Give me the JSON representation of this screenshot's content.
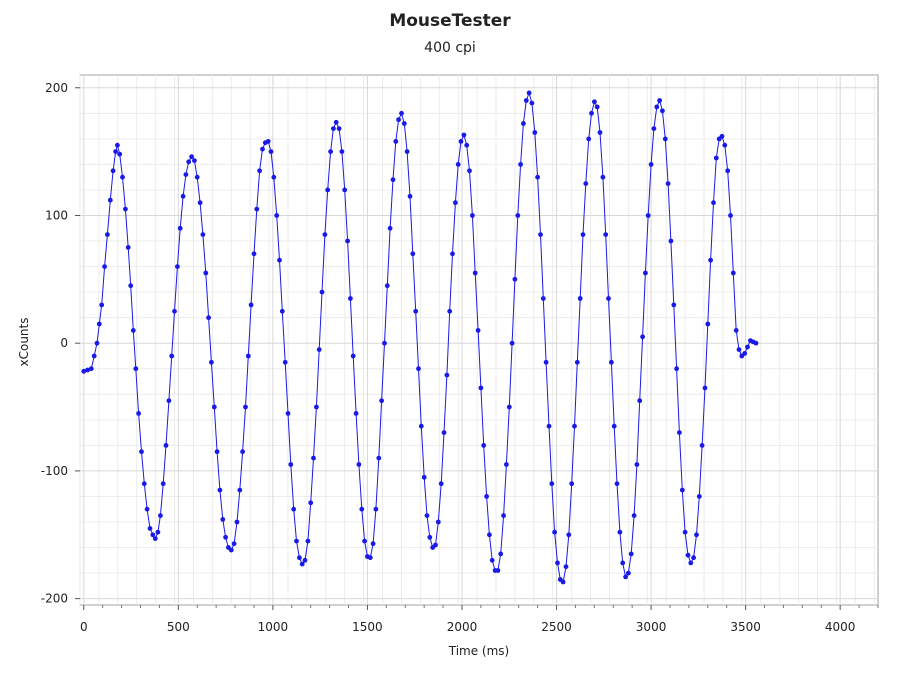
{
  "chart_data": {
    "type": "line",
    "title": "MouseTester",
    "subtitle": "400 cpi",
    "xlabel": "Time (ms)",
    "ylabel": "xCounts",
    "xlim": [
      -20,
      4200
    ],
    "ylim": [
      -205,
      210
    ],
    "x_ticks": [
      0,
      500,
      1000,
      1500,
      2000,
      2500,
      3000,
      3500,
      4000
    ],
    "x_tick_labels": [
      "0",
      "500",
      "1000",
      "1500",
      "2000",
      "2500",
      "3000",
      "3500",
      "4000"
    ],
    "y_ticks": [
      200,
      100,
      0,
      -100,
      -200
    ],
    "y_tick_labels": [
      "200",
      "100",
      "0",
      "-100",
      "-200"
    ],
    "grid": true,
    "legend": "none",
    "series_color": "#1a1ae6",
    "marker": "circle",
    "series": [
      {
        "points": [
          [
            0,
            -22
          ],
          [
            20,
            -21
          ],
          [
            40,
            -20
          ],
          [
            55,
            -10
          ],
          [
            70,
            0
          ],
          [
            82,
            15
          ],
          [
            95,
            30
          ],
          [
            110,
            60
          ],
          [
            125,
            85
          ],
          [
            140,
            112
          ],
          [
            155,
            135
          ],
          [
            168,
            150
          ],
          [
            178,
            155
          ],
          [
            190,
            148
          ],
          [
            205,
            130
          ],
          [
            220,
            105
          ],
          [
            235,
            75
          ],
          [
            248,
            45
          ],
          [
            262,
            10
          ],
          [
            275,
            -20
          ],
          [
            290,
            -55
          ],
          [
            305,
            -85
          ],
          [
            320,
            -110
          ],
          [
            335,
            -130
          ],
          [
            350,
            -145
          ],
          [
            365,
            -150
          ],
          [
            378,
            -153
          ],
          [
            392,
            -148
          ],
          [
            405,
            -135
          ],
          [
            420,
            -110
          ],
          [
            435,
            -80
          ],
          [
            450,
            -45
          ],
          [
            465,
            -10
          ],
          [
            480,
            25
          ],
          [
            495,
            60
          ],
          [
            510,
            90
          ],
          [
            525,
            115
          ],
          [
            540,
            132
          ],
          [
            555,
            142
          ],
          [
            570,
            146
          ],
          [
            585,
            143
          ],
          [
            600,
            130
          ],
          [
            615,
            110
          ],
          [
            630,
            85
          ],
          [
            645,
            55
          ],
          [
            660,
            20
          ],
          [
            675,
            -15
          ],
          [
            690,
            -50
          ],
          [
            705,
            -85
          ],
          [
            720,
            -115
          ],
          [
            735,
            -138
          ],
          [
            750,
            -152
          ],
          [
            765,
            -160
          ],
          [
            780,
            -162
          ],
          [
            795,
            -157
          ],
          [
            810,
            -140
          ],
          [
            825,
            -115
          ],
          [
            840,
            -85
          ],
          [
            855,
            -50
          ],
          [
            870,
            -10
          ],
          [
            885,
            30
          ],
          [
            900,
            70
          ],
          [
            915,
            105
          ],
          [
            930,
            135
          ],
          [
            945,
            152
          ],
          [
            960,
            157
          ],
          [
            975,
            158
          ],
          [
            990,
            150
          ],
          [
            1005,
            130
          ],
          [
            1020,
            100
          ],
          [
            1035,
            65
          ],
          [
            1050,
            25
          ],
          [
            1065,
            -15
          ],
          [
            1080,
            -55
          ],
          [
            1095,
            -95
          ],
          [
            1110,
            -130
          ],
          [
            1125,
            -155
          ],
          [
            1140,
            -168
          ],
          [
            1155,
            -173
          ],
          [
            1170,
            -170
          ],
          [
            1185,
            -155
          ],
          [
            1200,
            -125
          ],
          [
            1215,
            -90
          ],
          [
            1230,
            -50
          ],
          [
            1245,
            -5
          ],
          [
            1260,
            40
          ],
          [
            1275,
            85
          ],
          [
            1290,
            120
          ],
          [
            1305,
            150
          ],
          [
            1320,
            168
          ],
          [
            1335,
            173
          ],
          [
            1350,
            168
          ],
          [
            1365,
            150
          ],
          [
            1380,
            120
          ],
          [
            1395,
            80
          ],
          [
            1410,
            35
          ],
          [
            1425,
            -10
          ],
          [
            1440,
            -55
          ],
          [
            1455,
            -95
          ],
          [
            1470,
            -130
          ],
          [
            1485,
            -155
          ],
          [
            1500,
            -167
          ],
          [
            1515,
            -168
          ],
          [
            1530,
            -157
          ],
          [
            1545,
            -130
          ],
          [
            1560,
            -90
          ],
          [
            1575,
            -45
          ],
          [
            1590,
            0
          ],
          [
            1605,
            45
          ],
          [
            1620,
            90
          ],
          [
            1635,
            128
          ],
          [
            1650,
            158
          ],
          [
            1665,
            175
          ],
          [
            1680,
            180
          ],
          [
            1695,
            172
          ],
          [
            1710,
            150
          ],
          [
            1725,
            115
          ],
          [
            1740,
            70
          ],
          [
            1755,
            25
          ],
          [
            1770,
            -20
          ],
          [
            1785,
            -65
          ],
          [
            1800,
            -105
          ],
          [
            1815,
            -135
          ],
          [
            1830,
            -152
          ],
          [
            1845,
            -160
          ],
          [
            1860,
            -158
          ],
          [
            1875,
            -140
          ],
          [
            1890,
            -110
          ],
          [
            1905,
            -70
          ],
          [
            1920,
            -25
          ],
          [
            1935,
            25
          ],
          [
            1950,
            70
          ],
          [
            1965,
            110
          ],
          [
            1980,
            140
          ],
          [
            1995,
            158
          ],
          [
            2010,
            163
          ],
          [
            2025,
            155
          ],
          [
            2040,
            135
          ],
          [
            2055,
            100
          ],
          [
            2070,
            55
          ],
          [
            2085,
            10
          ],
          [
            2100,
            -35
          ],
          [
            2115,
            -80
          ],
          [
            2130,
            -120
          ],
          [
            2145,
            -150
          ],
          [
            2160,
            -170
          ],
          [
            2175,
            -178
          ],
          [
            2190,
            -178
          ],
          [
            2205,
            -165
          ],
          [
            2220,
            -135
          ],
          [
            2235,
            -95
          ],
          [
            2250,
            -50
          ],
          [
            2265,
            0
          ],
          [
            2280,
            50
          ],
          [
            2295,
            100
          ],
          [
            2310,
            140
          ],
          [
            2325,
            172
          ],
          [
            2340,
            190
          ],
          [
            2355,
            196
          ],
          [
            2370,
            188
          ],
          [
            2385,
            165
          ],
          [
            2400,
            130
          ],
          [
            2415,
            85
          ],
          [
            2430,
            35
          ],
          [
            2445,
            -15
          ],
          [
            2460,
            -65
          ],
          [
            2475,
            -110
          ],
          [
            2490,
            -148
          ],
          [
            2505,
            -172
          ],
          [
            2520,
            -185
          ],
          [
            2535,
            -187
          ],
          [
            2550,
            -175
          ],
          [
            2565,
            -150
          ],
          [
            2580,
            -110
          ],
          [
            2595,
            -65
          ],
          [
            2610,
            -15
          ],
          [
            2625,
            35
          ],
          [
            2640,
            85
          ],
          [
            2655,
            125
          ],
          [
            2670,
            160
          ],
          [
            2685,
            180
          ],
          [
            2700,
            189
          ],
          [
            2715,
            185
          ],
          [
            2730,
            165
          ],
          [
            2745,
            130
          ],
          [
            2760,
            85
          ],
          [
            2775,
            35
          ],
          [
            2790,
            -15
          ],
          [
            2805,
            -65
          ],
          [
            2820,
            -110
          ],
          [
            2835,
            -148
          ],
          [
            2850,
            -172
          ],
          [
            2865,
            -183
          ],
          [
            2880,
            -180
          ],
          [
            2895,
            -165
          ],
          [
            2910,
            -135
          ],
          [
            2925,
            -95
          ],
          [
            2940,
            -45
          ],
          [
            2955,
            5
          ],
          [
            2970,
            55
          ],
          [
            2985,
            100
          ],
          [
            3000,
            140
          ],
          [
            3015,
            168
          ],
          [
            3030,
            185
          ],
          [
            3045,
            190
          ],
          [
            3060,
            182
          ],
          [
            3075,
            160
          ],
          [
            3090,
            125
          ],
          [
            3105,
            80
          ],
          [
            3120,
            30
          ],
          [
            3135,
            -20
          ],
          [
            3150,
            -70
          ],
          [
            3165,
            -115
          ],
          [
            3180,
            -148
          ],
          [
            3195,
            -166
          ],
          [
            3210,
            -172
          ],
          [
            3225,
            -168
          ],
          [
            3240,
            -150
          ],
          [
            3255,
            -120
          ],
          [
            3270,
            -80
          ],
          [
            3285,
            -35
          ],
          [
            3300,
            15
          ],
          [
            3315,
            65
          ],
          [
            3330,
            110
          ],
          [
            3345,
            145
          ],
          [
            3360,
            160
          ],
          [
            3375,
            162
          ],
          [
            3390,
            155
          ],
          [
            3405,
            135
          ],
          [
            3420,
            100
          ],
          [
            3435,
            55
          ],
          [
            3450,
            10
          ],
          [
            3465,
            -5
          ],
          [
            3480,
            -10
          ],
          [
            3495,
            -8
          ],
          [
            3510,
            -3
          ],
          [
            3525,
            2
          ],
          [
            3540,
            1
          ],
          [
            3555,
            0
          ]
        ]
      }
    ]
  }
}
